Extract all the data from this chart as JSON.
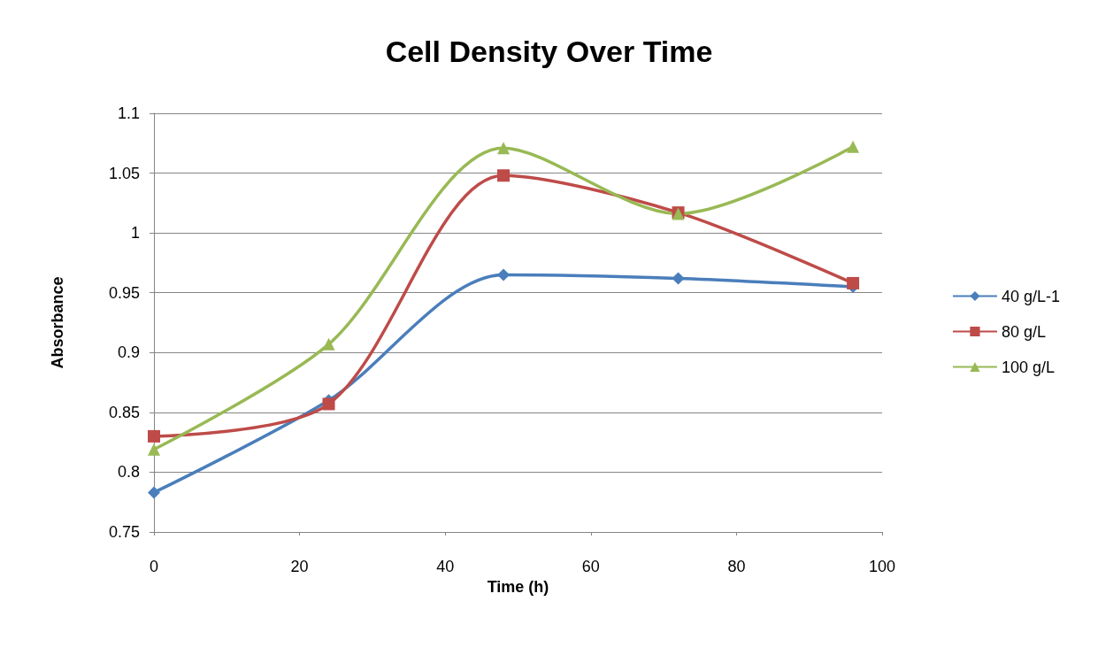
{
  "chart_data": {
    "type": "line",
    "title": "Cell Density Over Time",
    "xlabel": "Time (h)",
    "ylabel": "Absorbance",
    "x": [
      0,
      24,
      48,
      72,
      96
    ],
    "series": [
      {
        "name": "40 g/L-1",
        "color": "#4a7ebb",
        "marker": "diamond",
        "values": [
          0.783,
          0.86,
          0.965,
          0.962,
          0.955
        ]
      },
      {
        "name": "80 g/L",
        "color": "#be4b48",
        "marker": "square",
        "values": [
          0.83,
          0.857,
          1.048,
          1.017,
          0.958
        ]
      },
      {
        "name": "100 g/L",
        "color": "#98b954",
        "marker": "triangle",
        "values": [
          0.819,
          0.907,
          1.071,
          1.016,
          1.072
        ]
      }
    ],
    "xlim": [
      0,
      100
    ],
    "xticks": [
      0,
      20,
      40,
      60,
      80,
      100
    ],
    "ylim": [
      0.75,
      1.1
    ],
    "yticks": [
      0.75,
      0.8,
      0.85,
      0.9,
      0.95,
      1,
      1.05,
      1.1
    ],
    "grid": "y",
    "legend": "right",
    "line_style": "solid"
  }
}
